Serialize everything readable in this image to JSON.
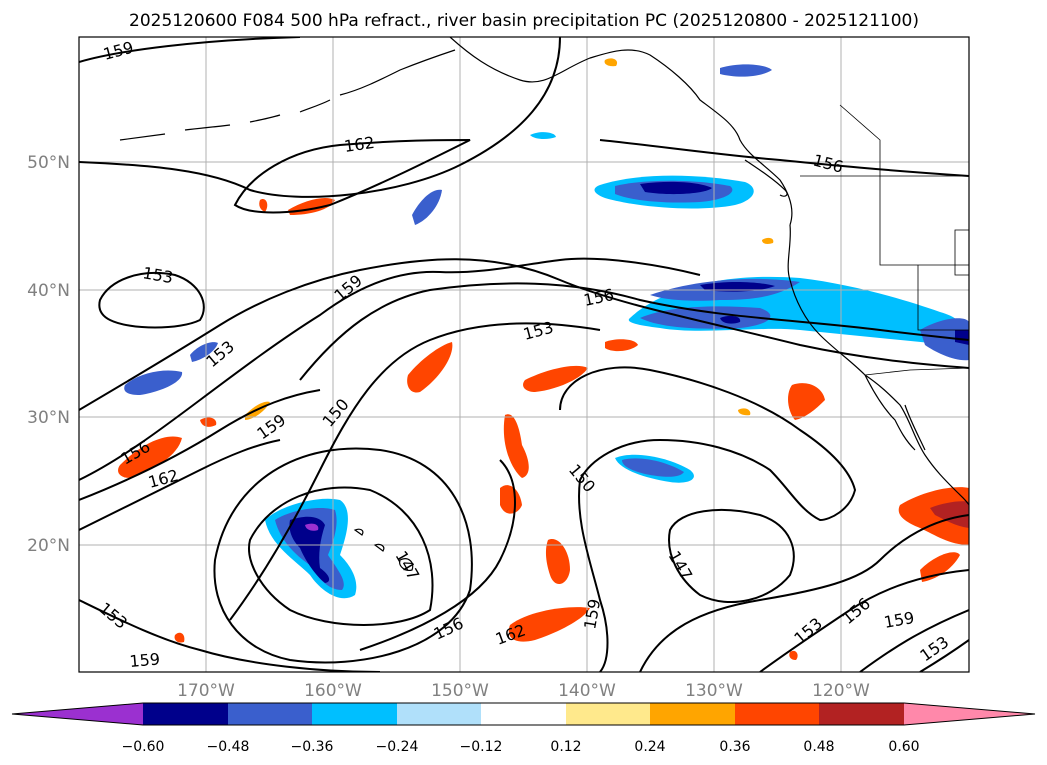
{
  "title": "2025120600 F084 500 hPa refract., river basin precipitation PC (2025120800 - 2025121100)",
  "latitude_labels": [
    "50°N",
    "40°N",
    "30°N",
    "20°N"
  ],
  "longitude_labels": [
    "170°W",
    "160°W",
    "150°W",
    "140°W",
    "130°W",
    "120°W"
  ],
  "contour_labels": {
    "c159a": "159",
    "c162a": "162",
    "c153a": "153",
    "c159b": "159",
    "c153b": "153",
    "c156a": "156",
    "c150a": "150",
    "c153c": "153",
    "c156b": "156",
    "c162b": "162",
    "c159c": "159",
    "c156c": "156",
    "c150b": "150",
    "c147a": "147",
    "c147b": "147",
    "c159d": "159",
    "c156d": "156",
    "c162c": "162",
    "c159e": "159",
    "c153d": "153",
    "c159f": "159",
    "c156e": "156",
    "c153e": "153",
    "c153f": "153"
  },
  "colorbar": {
    "colors": [
      "#9b30d0",
      "#00008b",
      "#3a5fcd",
      "#00bfff",
      "#b0e0fa",
      "#ffffff",
      "#ffe98c",
      "#ffa500",
      "#ff4500",
      "#b22222",
      "#ff88aa"
    ],
    "ticks": [
      "−0.60",
      "−0.48",
      "−0.36",
      "−0.24",
      "−0.12",
      "0.12",
      "0.24",
      "0.36",
      "0.48",
      "0.60"
    ]
  },
  "colors": {
    "grid": "#b0b0b0",
    "axis_label": "#808080",
    "contour": "#000000"
  }
}
